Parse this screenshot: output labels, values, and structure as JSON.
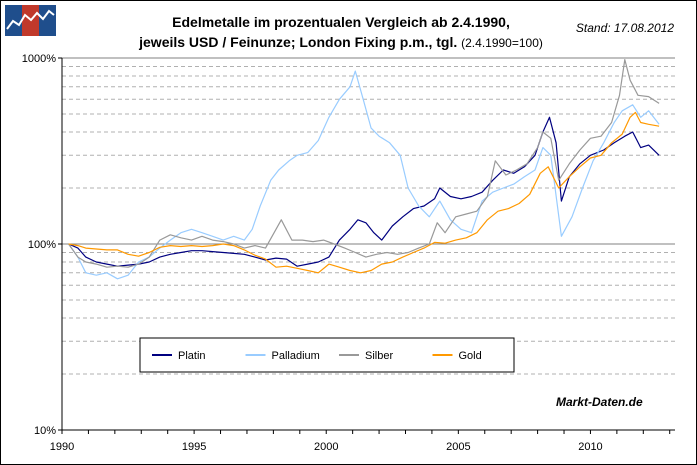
{
  "header": {
    "title_line1": "Edelmetalle im prozentualen Vergleich ab 2.4.1990,",
    "title_line2": "jeweils USD / Feinunze; London Fixing p.m., tgl.",
    "title_line2_suffix": "(2.4.1990=100)",
    "stand": "Stand: 17.08.2012"
  },
  "source": "Markt-Daten.de",
  "colors": {
    "Platin": "#000080",
    "Palladium": "#99ccff",
    "Silber": "#999999",
    "Gold": "#ff9900",
    "logo_blue": "#1f4e8c",
    "logo_red": "#c0392b"
  },
  "chart_data": {
    "type": "line",
    "y_scale": "log",
    "ylim": [
      10,
      1000
    ],
    "xlim": [
      1990,
      2013.2
    ],
    "y_ticks": [
      "10%",
      "100%",
      "1000%"
    ],
    "x_ticks": [
      "1990",
      "1995",
      "2000",
      "2005",
      "2010"
    ],
    "grid": true,
    "legend_position": "bottom-left",
    "series": [
      {
        "name": "Platin",
        "x": [
          1990.25,
          1990.6,
          1990.9,
          1991.3,
          1991.7,
          1992.1,
          1992.5,
          1992.9,
          1993.3,
          1993.7,
          1994.1,
          1994.5,
          1994.9,
          1995.3,
          1995.7,
          1996.1,
          1996.5,
          1996.9,
          1997.3,
          1997.7,
          1998.1,
          1998.5,
          1998.9,
          1999.3,
          1999.7,
          2000.1,
          2000.5,
          2000.9,
          2001.2,
          2001.5,
          2001.8,
          2002.1,
          2002.5,
          2002.9,
          2003.3,
          2003.7,
          2004.1,
          2004.3,
          2004.7,
          2005.1,
          2005.5,
          2005.9,
          2006.3,
          2006.7,
          2007.1,
          2007.5,
          2007.9,
          2008.2,
          2008.45,
          2008.7,
          2008.9,
          2009.2,
          2009.6,
          2010.0,
          2010.5,
          2010.9,
          2011.3,
          2011.6,
          2011.9,
          2012.2,
          2012.6
        ],
        "values": [
          100,
          95,
          85,
          80,
          78,
          76,
          77,
          78,
          80,
          85,
          88,
          90,
          92,
          92,
          91,
          90,
          89,
          88,
          85,
          82,
          84,
          83,
          76,
          78,
          80,
          85,
          105,
          120,
          135,
          130,
          115,
          105,
          125,
          140,
          155,
          160,
          175,
          200,
          180,
          175,
          180,
          190,
          220,
          250,
          240,
          260,
          300,
          400,
          480,
          350,
          170,
          230,
          270,
          300,
          320,
          350,
          380,
          400,
          330,
          340,
          300
        ]
      },
      {
        "name": "Palladium",
        "x": [
          1990.25,
          1990.6,
          1990.9,
          1991.3,
          1991.7,
          1992.1,
          1992.5,
          1992.9,
          1993.3,
          1993.7,
          1994.1,
          1994.5,
          1994.9,
          1995.3,
          1995.7,
          1996.1,
          1996.5,
          1996.9,
          1997.2,
          1997.5,
          1997.9,
          1998.2,
          1998.6,
          1998.9,
          1999.3,
          1999.7,
          2000.1,
          2000.5,
          2000.9,
          2001.1,
          2001.4,
          2001.7,
          2002.0,
          2002.4,
          2002.8,
          2003.1,
          2003.5,
          2003.9,
          2004.3,
          2004.7,
          2005.1,
          2005.5,
          2005.9,
          2006.3,
          2006.7,
          2007.1,
          2007.5,
          2007.9,
          2008.2,
          2008.5,
          2008.9,
          2009.3,
          2009.7,
          2010.1,
          2010.5,
          2010.9,
          2011.2,
          2011.6,
          2011.9,
          2012.2,
          2012.6
        ],
        "values": [
          100,
          85,
          70,
          68,
          70,
          65,
          68,
          80,
          85,
          95,
          105,
          115,
          120,
          115,
          110,
          105,
          110,
          105,
          120,
          160,
          220,
          250,
          280,
          300,
          310,
          360,
          480,
          600,
          700,
          850,
          600,
          420,
          380,
          350,
          300,
          200,
          160,
          140,
          170,
          135,
          120,
          115,
          170,
          190,
          200,
          210,
          230,
          250,
          330,
          300,
          110,
          140,
          200,
          280,
          350,
          450,
          520,
          560,
          480,
          520,
          440
        ]
      },
      {
        "name": "Silber",
        "x": [
          1990.25,
          1990.6,
          1990.9,
          1991.3,
          1991.7,
          1992.1,
          1992.5,
          1992.9,
          1993.3,
          1993.7,
          1994.1,
          1994.5,
          1994.9,
          1995.3,
          1995.7,
          1996.1,
          1996.5,
          1996.9,
          1997.3,
          1997.7,
          1998.1,
          1998.3,
          1998.7,
          1999.1,
          1999.5,
          1999.9,
          2000.3,
          2000.7,
          2001.1,
          2001.5,
          2001.9,
          2002.3,
          2002.7,
          2003.1,
          2003.5,
          2003.9,
          2004.2,
          2004.5,
          2004.9,
          2005.3,
          2005.7,
          2006.1,
          2006.4,
          2006.8,
          2007.2,
          2007.6,
          2008.0,
          2008.2,
          2008.5,
          2008.8,
          2009.2,
          2009.6,
          2010.0,
          2010.4,
          2010.8,
          2011.1,
          2011.3,
          2011.5,
          2011.8,
          2012.2,
          2012.6
        ],
        "values": [
          100,
          85,
          80,
          78,
          75,
          76,
          75,
          78,
          85,
          105,
          112,
          108,
          105,
          110,
          105,
          103,
          100,
          95,
          98,
          95,
          120,
          135,
          105,
          105,
          103,
          105,
          100,
          95,
          90,
          85,
          88,
          90,
          88,
          90,
          95,
          100,
          130,
          115,
          140,
          145,
          150,
          180,
          280,
          235,
          250,
          270,
          330,
          400,
          370,
          220,
          270,
          320,
          370,
          380,
          450,
          630,
          980,
          760,
          630,
          620,
          570
        ]
      },
      {
        "name": "Gold",
        "x": [
          1990.25,
          1990.6,
          1990.9,
          1991.3,
          1991.7,
          1992.1,
          1992.5,
          1992.9,
          1993.3,
          1993.7,
          1994.1,
          1994.5,
          1994.9,
          1995.3,
          1995.7,
          1996.1,
          1996.5,
          1996.9,
          1997.3,
          1997.7,
          1998.1,
          1998.5,
          1998.9,
          1999.3,
          1999.7,
          2000.1,
          2000.5,
          2000.9,
          2001.3,
          2001.7,
          2002.1,
          2002.5,
          2002.9,
          2003.3,
          2003.7,
          2004.1,
          2004.5,
          2004.9,
          2005.3,
          2005.7,
          2006.1,
          2006.5,
          2006.9,
          2007.3,
          2007.7,
          2008.1,
          2008.4,
          2008.8,
          2009.2,
          2009.6,
          2010.0,
          2010.4,
          2010.8,
          2011.2,
          2011.5,
          2011.7,
          2011.9,
          2012.2,
          2012.6
        ],
        "values": [
          100,
          98,
          95,
          94,
          93,
          93,
          88,
          86,
          90,
          96,
          98,
          97,
          98,
          97,
          98,
          100,
          98,
          93,
          87,
          83,
          75,
          76,
          74,
          72,
          70,
          78,
          75,
          72,
          70,
          72,
          78,
          80,
          85,
          90,
          95,
          102,
          101,
          105,
          108,
          115,
          135,
          150,
          155,
          165,
          185,
          240,
          260,
          200,
          230,
          260,
          290,
          300,
          350,
          390,
          480,
          510,
          450,
          440,
          430
        ]
      }
    ]
  }
}
